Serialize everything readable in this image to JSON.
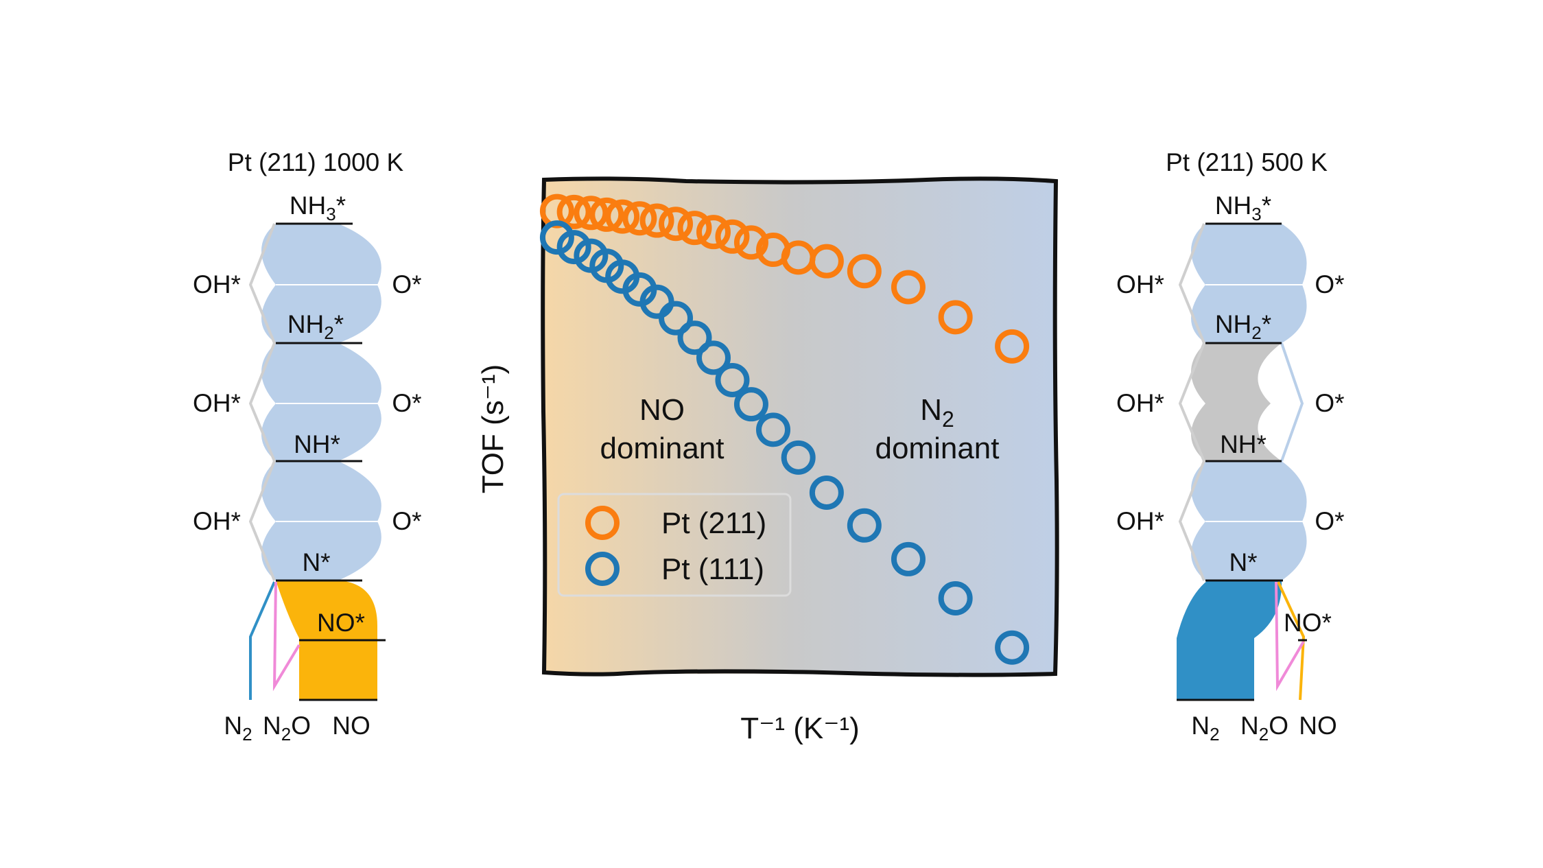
{
  "left_panel": {
    "title": "Pt (211) 1000 K",
    "levels": [
      "NH3*",
      "NH2*",
      "NH*",
      "N*",
      "NO*"
    ],
    "left_species": [
      "OH*",
      "OH*",
      "OH*"
    ],
    "right_species": [
      "O*",
      "O*",
      "O*"
    ],
    "products": [
      "N2",
      "N2O",
      "NO"
    ],
    "dominant_product": "NO"
  },
  "right_panel": {
    "title": "Pt (211)  500 K",
    "levels": [
      "NH3*",
      "NH2*",
      "NH*",
      "N*",
      "NO*"
    ],
    "left_species": [
      "OH*",
      "OH*",
      "OH*"
    ],
    "right_species": [
      "O*",
      "O*",
      "O*"
    ],
    "products": [
      "N2",
      "N2O",
      "NO"
    ],
    "dominant_product": "N2"
  },
  "colors": {
    "flux_blue": "#b9cfe9",
    "flux_gray": "#c6c6c6",
    "no_orange": "#fbb40b",
    "n2_blue": "#3090c6",
    "n2o_pink": "#f08ad8",
    "pt211_orange": "#fa7d10",
    "pt111_blue": "#1f77b4",
    "bg_left": "#f5d7a8",
    "bg_mid": "#c9c9c9",
    "bg_right": "#bfcfe6"
  },
  "chart_data": {
    "type": "scatter",
    "xlabel": "T⁻¹ (K⁻¹)",
    "ylabel": "TOF (s⁻¹)",
    "x_ticks": "none",
    "y_ticks": "none",
    "y_scale": "log",
    "grid": false,
    "legend_position": "lower-left",
    "regions": [
      {
        "label_line1": "NO",
        "label_line2": "dominant"
      },
      {
        "label_line1": "N2",
        "label_line2": "dominant"
      }
    ],
    "x": [
      0.002,
      0.056,
      0.11,
      0.16,
      0.21,
      0.265,
      0.32,
      0.38,
      0.44,
      0.5,
      0.56,
      0.62,
      0.69,
      0.77,
      0.86,
      0.98,
      1.12,
      1.27,
      1.45
    ],
    "series": [
      {
        "name": "Pt (211)",
        "values": [
          0.978,
          0.976,
          0.974,
          0.97,
          0.966,
          0.962,
          0.957,
          0.95,
          0.941,
          0.932,
          0.922,
          0.909,
          0.893,
          0.876,
          0.868,
          0.846,
          0.811,
          0.745,
          0.681
        ]
      },
      {
        "name": "Pt (111)",
        "values": [
          0.92,
          0.899,
          0.88,
          0.858,
          0.834,
          0.806,
          0.779,
          0.743,
          0.7,
          0.656,
          0.607,
          0.554,
          0.498,
          0.437,
          0.36,
          0.288,
          0.214,
          0.128,
          0.02
        ]
      }
    ],
    "xlim": [
      0,
      1.5
    ],
    "ylim": [
      0,
      1
    ]
  }
}
